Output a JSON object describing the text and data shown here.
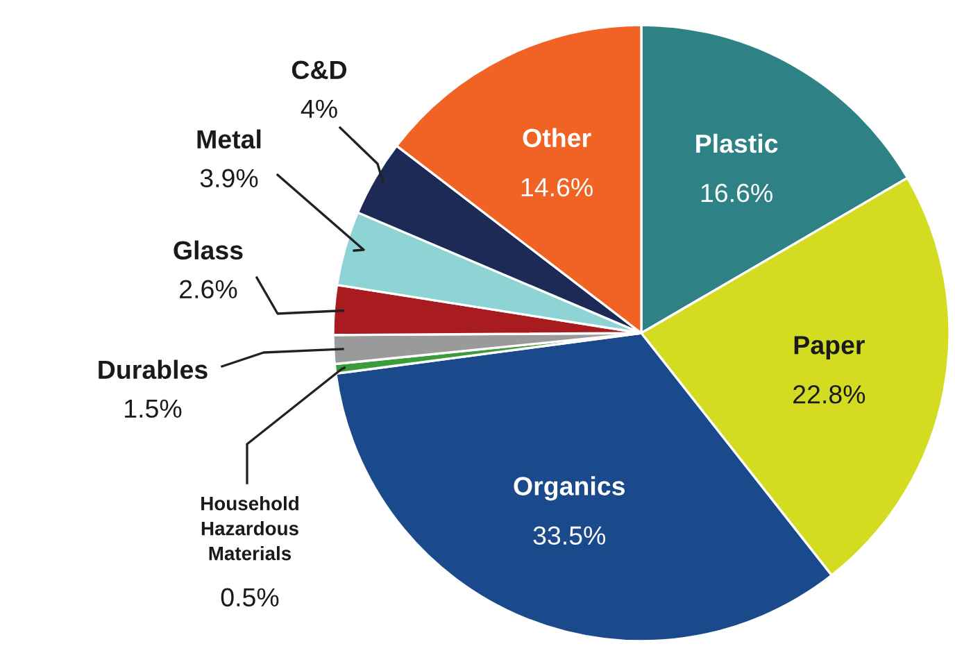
{
  "chart_data": {
    "type": "pie",
    "categories": [
      "Plastic",
      "Paper",
      "Organics",
      "Household Hazardous Materials",
      "Durables",
      "Glass",
      "Metal",
      "C&D",
      "Other"
    ],
    "values": [
      16.6,
      22.8,
      33.5,
      0.5,
      1.5,
      2.6,
      3.9,
      4,
      14.6
    ],
    "value_labels": [
      "16.6%",
      "22.8%",
      "33.5%",
      "0.5%",
      "1.5%",
      "2.6%",
      "3.9%",
      "4%",
      "14.6%"
    ],
    "colors": [
      "#2e8286",
      "#d4dc22",
      "#1b4a8c",
      "#3c9c3c",
      "#9a9a9a",
      "#a81c1f",
      "#8ed4d4",
      "#1c2a55",
      "#f06325"
    ],
    "legend": false
  }
}
